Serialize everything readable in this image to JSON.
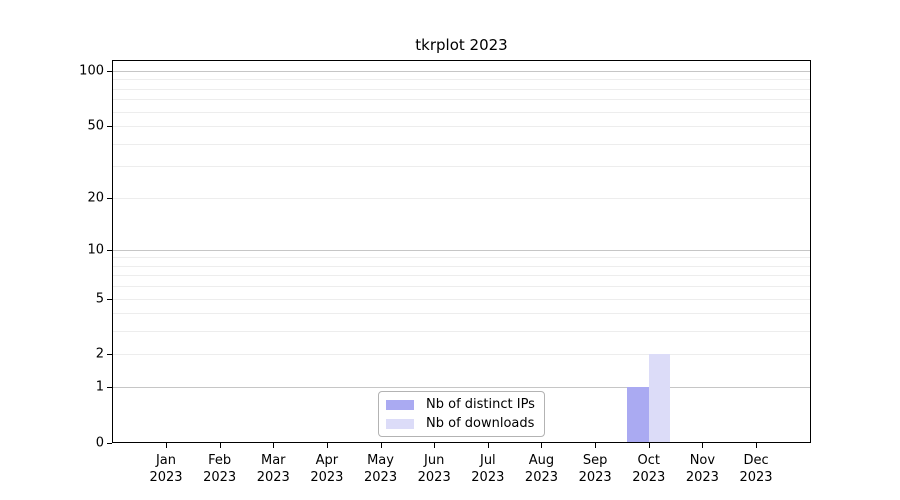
{
  "title": "tkrplot 2023",
  "chart_data": {
    "type": "bar",
    "title": "tkrplot 2023",
    "categories": [
      [
        "Jan",
        "2023"
      ],
      [
        "Feb",
        "2023"
      ],
      [
        "Mar",
        "2023"
      ],
      [
        "Apr",
        "2023"
      ],
      [
        "May",
        "2023"
      ],
      [
        "Jun",
        "2023"
      ],
      [
        "Jul",
        "2023"
      ],
      [
        "Aug",
        "2023"
      ],
      [
        "Sep",
        "2023"
      ],
      [
        "Oct",
        "2023"
      ],
      [
        "Nov",
        "2023"
      ],
      [
        "Dec",
        "2023"
      ]
    ],
    "series": [
      {
        "name": "Nb of distinct IPs",
        "color": "#aaaaf2",
        "values": [
          0,
          0,
          0,
          0,
          0,
          0,
          0,
          0,
          0,
          1,
          0,
          0
        ]
      },
      {
        "name": "Nb of downloads",
        "color": "#dcdcf8",
        "values": [
          0,
          0,
          0,
          0,
          0,
          0,
          0,
          0,
          0,
          2,
          0,
          0
        ]
      }
    ],
    "xlabel": "",
    "ylabel": "",
    "yscale": "log1p",
    "ylim": [
      0,
      114.8
    ],
    "yticks": [
      0,
      1,
      2,
      5,
      10,
      20,
      50,
      100
    ],
    "ytick_labels": [
      "0",
      "1",
      "2",
      "5",
      "10",
      "20",
      "50",
      "100"
    ],
    "gridlines": {
      "orientation": "horizontal",
      "minor": [
        2,
        3,
        4,
        5,
        6,
        7,
        8,
        9,
        20,
        30,
        40,
        50,
        60,
        70,
        80,
        90
      ],
      "major": [
        1,
        10,
        100
      ]
    },
    "legend_position": "lower center",
    "colors": {
      "grid_minor": "#ededed",
      "grid_major": "#c6c6c6",
      "axis": "#000000",
      "legend_border": "#b3b3b3",
      "text": "#000000",
      "background": "#ffffff"
    }
  }
}
